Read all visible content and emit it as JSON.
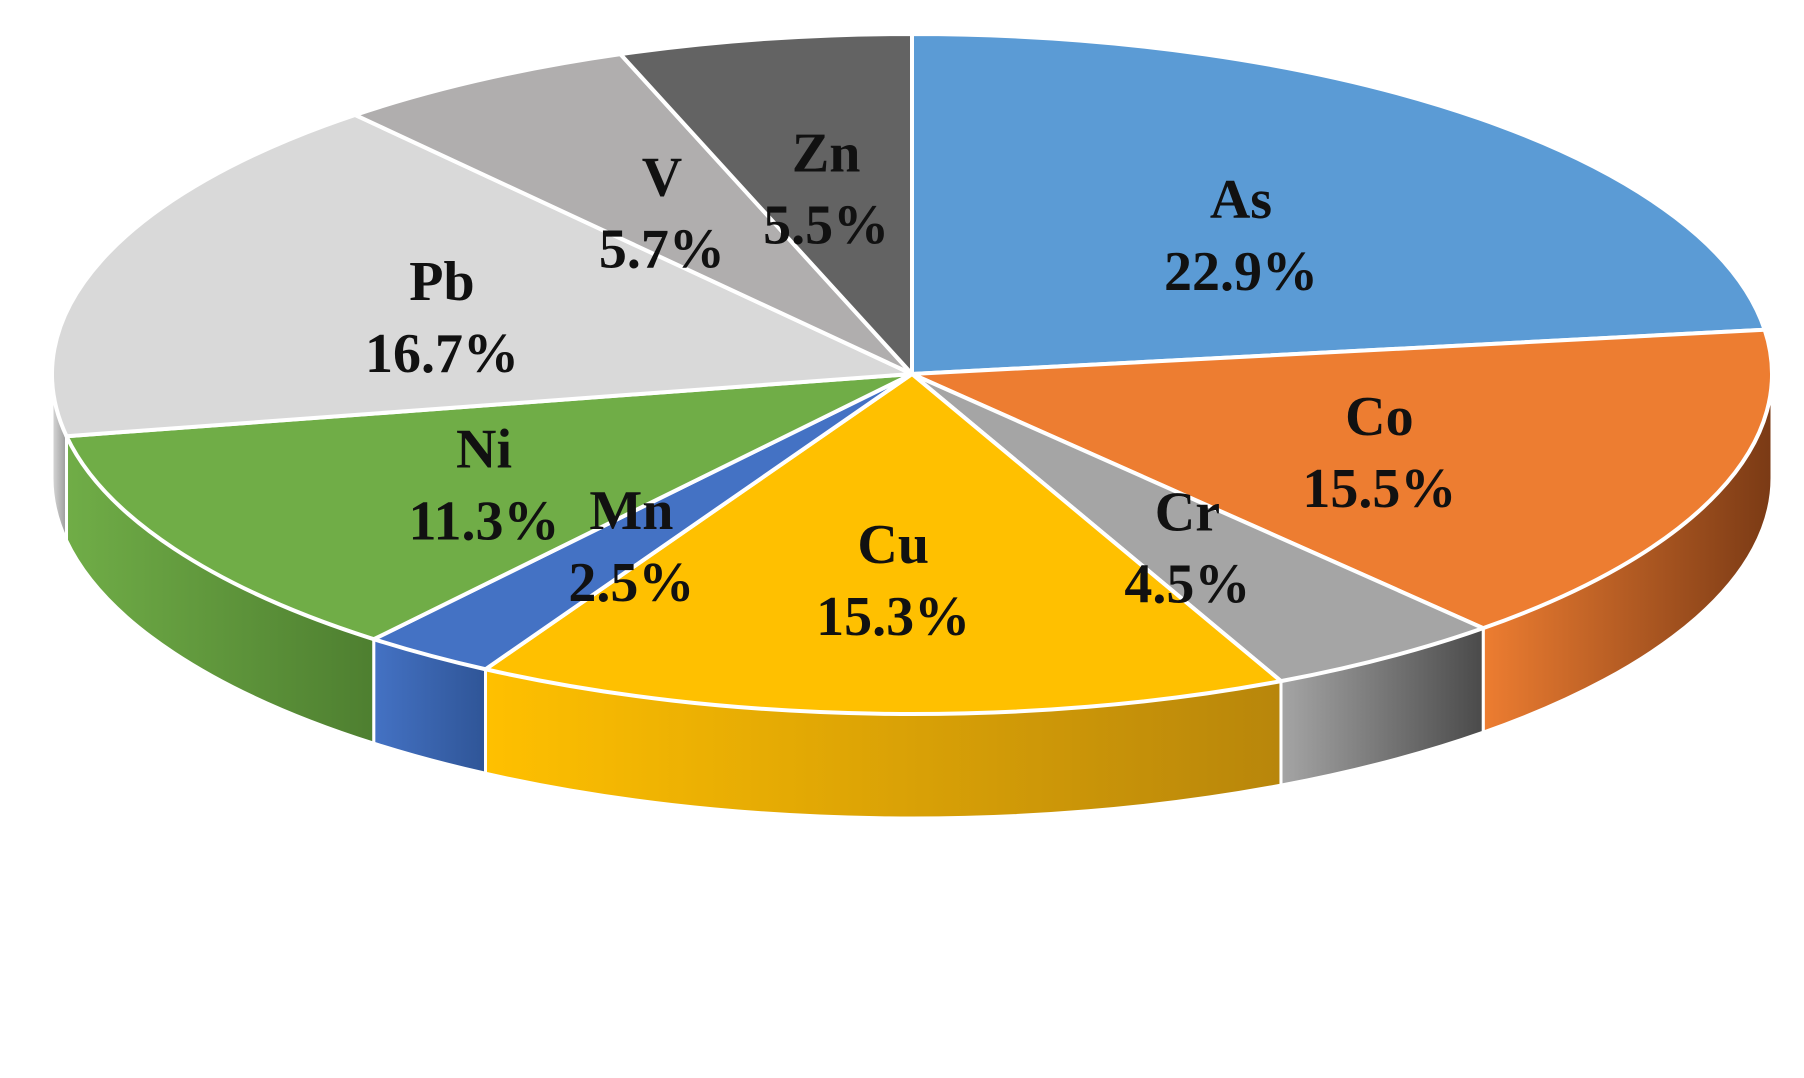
{
  "chart_data": {
    "type": "pie",
    "style": "3d",
    "unit": "%",
    "slices": [
      {
        "label": "As",
        "value": 22.9,
        "value_text": "22.9%",
        "color": "#5B9BD5",
        "side_color": "#3E6E9A"
      },
      {
        "label": "Co",
        "value": 15.5,
        "value_text": "15.5%",
        "color": "#ED7D31",
        "side_color": "#7A3A15"
      },
      {
        "label": "Cr",
        "value": 4.5,
        "value_text": "4.5%",
        "color": "#A5A5A5",
        "side_color": "#4A4A4A"
      },
      {
        "label": "Cu",
        "value": 15.3,
        "value_text": "15.3%",
        "color": "#FFC000",
        "side_color": "#B8860B"
      },
      {
        "label": "Mn",
        "value": 2.5,
        "value_text": "2.5%",
        "color": "#4472C4",
        "side_color": "#2F5597"
      },
      {
        "label": "Ni",
        "value": 11.3,
        "value_text": "11.3%",
        "color": "#70AD47",
        "side_color": "#4E7F30"
      },
      {
        "label": "Pb",
        "value": 16.7,
        "value_text": "16.7%",
        "color": "#D9D9D9",
        "side_color": "#9A9A9A"
      },
      {
        "label": "V",
        "value": 5.7,
        "value_text": "5.7%",
        "color": "#B0AEAE",
        "side_color": "#6E6C6C"
      },
      {
        "label": "Zn",
        "value": 5.5,
        "value_text": "5.5%",
        "color": "#636363",
        "side_color": "#3A3A3A"
      }
    ],
    "start": "12 o'clock",
    "direction": "clockwise",
    "legend": "none"
  }
}
